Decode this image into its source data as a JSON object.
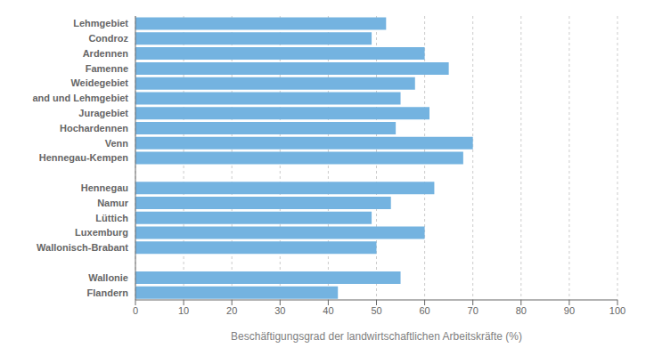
{
  "chart_data": {
    "type": "bar",
    "orientation": "horizontal",
    "categories": [
      "Flandern",
      "Wallonie",
      null,
      "Wallonisch-Brabant",
      "Luxemburg",
      "Lüttich",
      "Namur",
      "Hennegau",
      null,
      "Hennegau-Kempen",
      "Venn",
      "Hochardennen",
      "Juragebiet",
      "and und Lehmgebiet",
      "Weidegebiet",
      "Famenne",
      "Ardennen",
      "Condroz",
      "Lehmgebiet"
    ],
    "values": [
      42,
      55,
      0,
      50,
      60,
      49,
      53,
      62,
      0,
      68,
      70,
      54,
      61,
      55,
      58,
      65,
      60,
      49,
      52
    ],
    "color": "#74b3e0",
    "xlabel": "Beschäftigungsgrad der landwirtschaftlichen Arbeitskräfte (%)",
    "xlim": [
      0,
      100
    ],
    "xticks": [
      0,
      10,
      20,
      30,
      40,
      50,
      60,
      70,
      80,
      90,
      100
    ],
    "grid": true
  }
}
